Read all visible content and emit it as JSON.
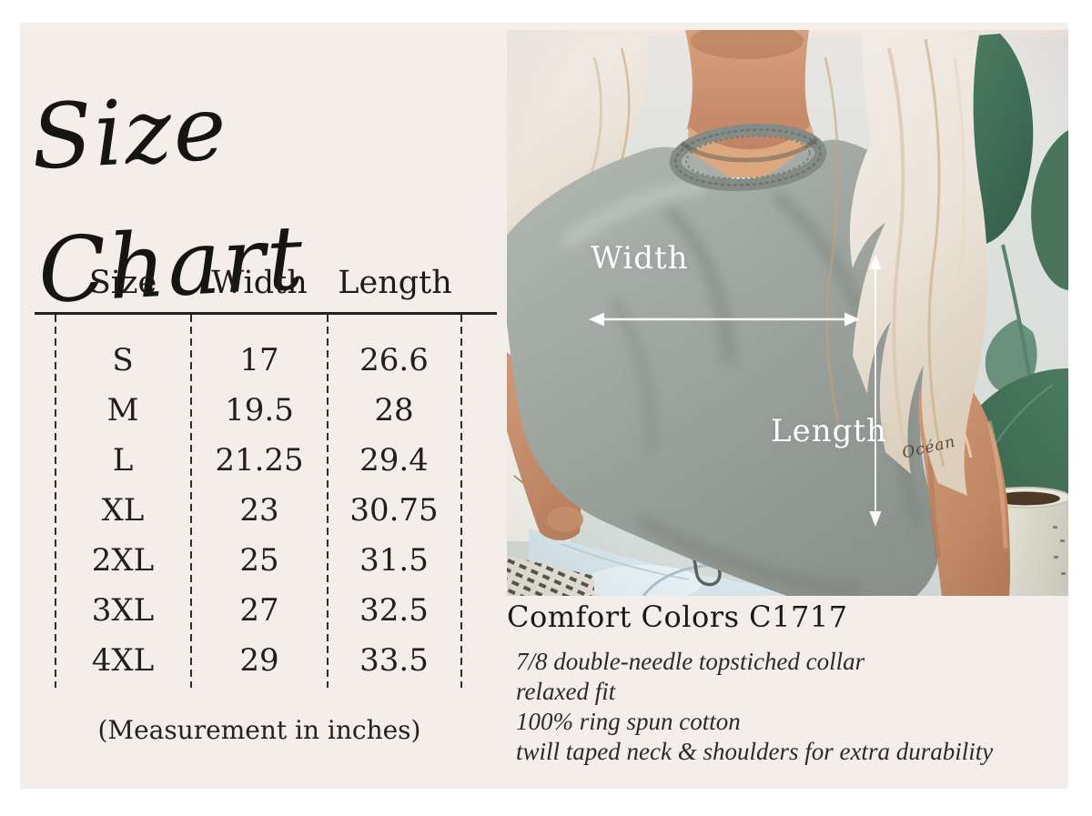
{
  "title": "Size Chart",
  "size_table": {
    "headers": [
      "Size",
      "Width",
      "Length"
    ],
    "rows": [
      [
        "S",
        "17",
        "26.6"
      ],
      [
        "M",
        "19.5",
        "28"
      ],
      [
        "L",
        "21.25",
        "29.4"
      ],
      [
        "XL",
        "23",
        "30.75"
      ],
      [
        "2XL",
        "25",
        "31.5"
      ],
      [
        "3XL",
        "27",
        "32.5"
      ],
      [
        "4XL",
        "29",
        "33.5"
      ]
    ],
    "caption": "(Measurement in inches)"
  },
  "photo_overlay": {
    "width_label": "Width",
    "length_label": "Length",
    "tattoo_text": "Océan"
  },
  "product": {
    "name": "Comfort Colors C1717",
    "details": [
      "7/8 double-needle topstiched collar",
      "relaxed fit",
      "100% ring spun cotton",
      "twill taped neck & shoulders for extra durability"
    ]
  },
  "colors": {
    "frame": "#ffffff",
    "panel_background": "#f3eeea",
    "ink": "#1d1c1a",
    "annotation_white": "#ffffff",
    "shirt_gray": "#9aa09c",
    "leaf_green": "#3f7055",
    "skin": "#c98d6d",
    "jeans_blue": "#d8e7ed"
  }
}
